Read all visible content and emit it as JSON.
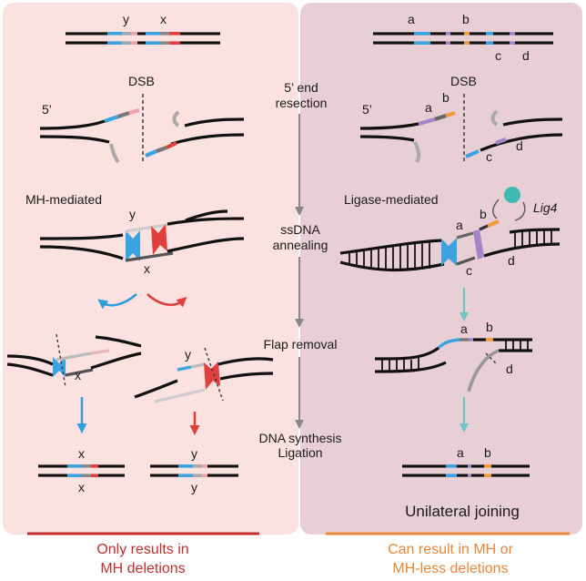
{
  "colors": {
    "left_panel_bg": "#fbe1df",
    "right_panel_bg": "#e8cfd5",
    "mh_blue": "#3ba4de",
    "mh_red": "#e0403d",
    "pink": "#f0a3a8",
    "purple": "#a483c6",
    "orange": "#f39a3a",
    "teal": "#3fbab2",
    "teal_arrow": "#6ec3c3",
    "gray_arrow": "#888888",
    "footer_red": "#c0302e",
    "footer_orange": "#e8873a"
  },
  "left": {
    "top_y": "y",
    "top_x": "x",
    "dsb": "DSB",
    "five_prime": "5’",
    "mh_mediated": "MH-mediated",
    "anneal_y": "y",
    "anneal_x": "x",
    "flapA_x": "x",
    "flapB_y": "y",
    "resultA_top": "x",
    "resultA_bottom": "x",
    "resultB_top": "y",
    "resultB_bottom": "y"
  },
  "middle": {
    "step1_line1": "5’ end",
    "step1_line2": "resection",
    "step2_line1": "ssDNA",
    "step2_line2": "annealing",
    "step3": "Flap removal",
    "step4_line1": "DNA synthesis",
    "step4_line2": "Ligation"
  },
  "right": {
    "top_a": "a",
    "top_b": "b",
    "top_c": "c",
    "top_d": "d",
    "dsb": "DSB",
    "five_prime": "5’",
    "res_a": "a",
    "res_b": "b",
    "res_c": "c",
    "res_d": "d",
    "ligase_mediated": "Ligase-mediated",
    "lig4": "Lig4",
    "lig_a": "a",
    "lig_b": "b",
    "lig_c": "c",
    "lig_d": "d",
    "flap_a": "a",
    "flap_b": "b",
    "flap_d": "d",
    "result_a": "a",
    "result_b": "b",
    "unilateral": "Unilateral joining"
  },
  "footer": {
    "left_line1": "Only results in",
    "left_line2": "MH deletions",
    "right_line1": "Can result in MH or",
    "right_line2": "MH-less deletions"
  }
}
